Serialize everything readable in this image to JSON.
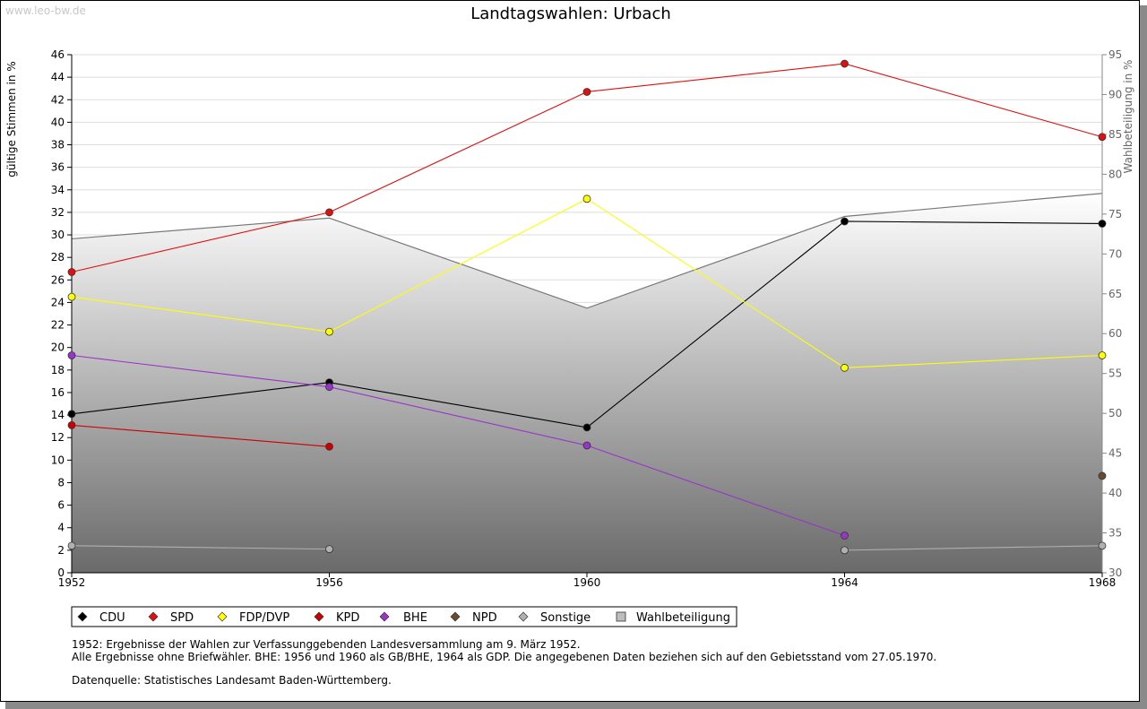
{
  "watermark": "www.leo-bw.de",
  "chart_data": {
    "type": "line",
    "title": "Landtagswahlen: Urbach",
    "ylabel": "gültige Stimmen in %",
    "ylabel_right": "Wahlbeteiligung in %",
    "x": [
      "1952",
      "1956",
      "1960",
      "1964",
      "1968"
    ],
    "ylim": [
      0,
      46
    ],
    "yticks": [
      0,
      2,
      4,
      6,
      8,
      10,
      12,
      14,
      16,
      18,
      20,
      22,
      24,
      26,
      28,
      30,
      32,
      34,
      36,
      38,
      40,
      42,
      44,
      46
    ],
    "ylim_right": [
      30,
      95
    ],
    "yticks_right": [
      30,
      35,
      40,
      45,
      50,
      55,
      60,
      65,
      70,
      75,
      80,
      85,
      90,
      95
    ],
    "grid": true,
    "legend_position": "bottom",
    "series": [
      {
        "name": "CDU",
        "color": "#000000",
        "values": [
          14.1,
          16.9,
          12.9,
          31.2,
          31.0
        ]
      },
      {
        "name": "SPD",
        "color": "#e01010",
        "values": [
          26.7,
          32.0,
          42.7,
          45.2,
          38.7
        ]
      },
      {
        "name": "FDP/DVP",
        "color": "#ffff00",
        "values": [
          24.5,
          21.4,
          33.2,
          18.2,
          19.3
        ]
      },
      {
        "name": "KPD",
        "color": "#cc0000",
        "values": [
          13.1,
          11.2,
          null,
          null,
          null
        ]
      },
      {
        "name": "BHE",
        "color": "#9933cc",
        "values": [
          19.3,
          16.5,
          11.3,
          3.3,
          null
        ]
      },
      {
        "name": "NPD",
        "color": "#6b4a2a",
        "values": [
          null,
          null,
          null,
          null,
          8.6
        ]
      },
      {
        "name": "Sonstige",
        "color": "#b0b0b0",
        "values": [
          2.4,
          2.1,
          null,
          2.0,
          2.4
        ]
      }
    ],
    "turnout": {
      "name": "Wahlbeteiligung",
      "color": "#777777",
      "values": [
        71.9,
        74.5,
        63.2,
        74.7,
        77.6
      ]
    }
  },
  "notes": {
    "line1": "1952: Ergebnisse der Wahlen zur Verfassunggebenden Landesversammlung am 9. März 1952.",
    "line2": "Alle Ergebnisse ohne Briefwähler. BHE: 1956 und 1960 als GB/BHE, 1964 als GDP. Die angegebenen Daten beziehen sich auf den Gebietsstand vom 27.05.1970.",
    "line3": "Datenquelle: Statistisches Landesamt Baden-Württemberg."
  }
}
